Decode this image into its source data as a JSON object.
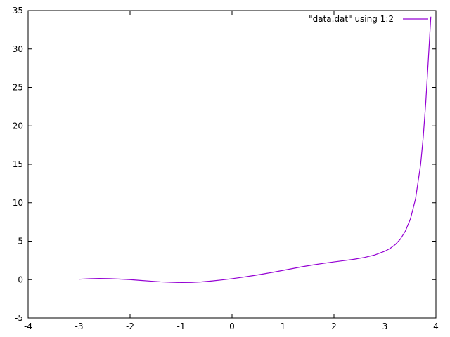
{
  "chart_data": {
    "type": "line",
    "title": "",
    "xlabel": "",
    "ylabel": "",
    "xlim": [
      -4,
      4
    ],
    "ylim": [
      -5,
      35
    ],
    "xticks": [
      -4,
      -3,
      -2,
      -1,
      0,
      1,
      2,
      3,
      4
    ],
    "yticks": [
      -5,
      0,
      5,
      10,
      15,
      20,
      25,
      30,
      35
    ],
    "grid": false,
    "legend_position": "top-right",
    "series": [
      {
        "name": "\"data.dat\" using 1:2",
        "color": "#9400d3",
        "x": [
          -3.0,
          -2.8,
          -2.6,
          -2.4,
          -2.2,
          -2.0,
          -1.8,
          -1.6,
          -1.4,
          -1.2,
          -1.0,
          -0.8,
          -0.6,
          -0.4,
          -0.2,
          0.0,
          0.2,
          0.4,
          0.6,
          0.8,
          1.0,
          1.2,
          1.4,
          1.6,
          1.8,
          2.0,
          2.2,
          2.4,
          2.6,
          2.8,
          3.0,
          3.1,
          3.2,
          3.3,
          3.4,
          3.5,
          3.6,
          3.7,
          3.75,
          3.8,
          3.85,
          3.9
        ],
        "y": [
          0.05,
          0.12,
          0.15,
          0.13,
          0.07,
          0.0,
          -0.1,
          -0.2,
          -0.29,
          -0.35,
          -0.38,
          -0.37,
          -0.3,
          -0.18,
          -0.04,
          0.12,
          0.3,
          0.5,
          0.72,
          0.95,
          1.2,
          1.45,
          1.7,
          1.92,
          2.12,
          2.3,
          2.47,
          2.65,
          2.88,
          3.2,
          3.7,
          4.05,
          4.55,
          5.25,
          6.3,
          7.9,
          10.5,
          15.0,
          18.5,
          23.0,
          28.5,
          34.2
        ]
      }
    ]
  }
}
